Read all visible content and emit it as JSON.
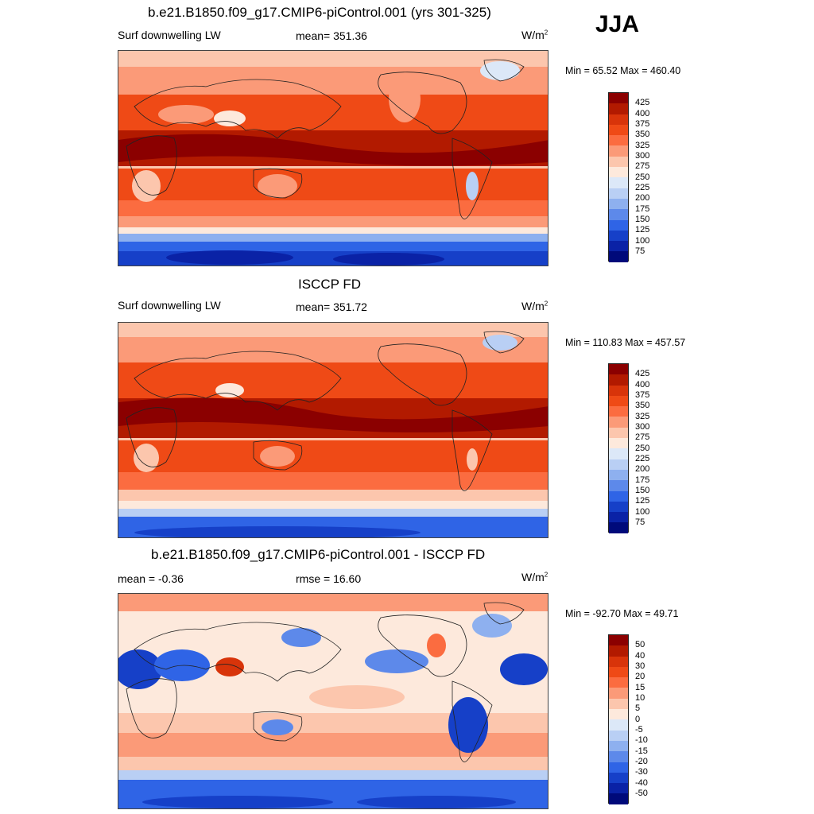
{
  "season": "JJA",
  "panels": [
    {
      "title": "b.e21.B1850.f09_g17.CMIP6-piControl.001 (yrs 301-325)",
      "left_label": "Surf downwelling LW",
      "center_label": "mean= 351.36",
      "units_base": "W/m",
      "units_exp": "2",
      "minmax": "Min =  65.52 Max = 460.40"
    },
    {
      "title": "ISCCP FD",
      "left_label": "Surf downwelling LW",
      "center_label": "mean= 351.72",
      "units_base": "W/m",
      "units_exp": "2",
      "minmax": "Min = 110.83 Max = 457.57"
    },
    {
      "title": "b.e21.B1850.f09_g17.CMIP6-piControl.001 - ISCCP FD",
      "left_label": "mean =  -0.36",
      "center_label": "rmse =  16.60",
      "units_base": "W/m",
      "units_exp": "2",
      "minmax": "Min = -92.70 Max =  49.71"
    }
  ],
  "colorbar_abs": {
    "labels": [
      "425",
      "400",
      "375",
      "350",
      "325",
      "300",
      "275",
      "250",
      "225",
      "200",
      "175",
      "150",
      "125",
      "100",
      "75"
    ],
    "colors": [
      "#8b0000",
      "#b21a00",
      "#d8340a",
      "#ef4a16",
      "#fb6c40",
      "#fb9a78",
      "#fcc6ad",
      "#fde9dc",
      "#dce8f8",
      "#b9cff4",
      "#8eb0ef",
      "#5d89ea",
      "#2f64e6",
      "#1640c8",
      "#0a22a6",
      "#000a7a"
    ]
  },
  "colorbar_diff": {
    "labels": [
      "50",
      "40",
      "30",
      "20",
      "15",
      "10",
      "5",
      "0",
      "-5",
      "-10",
      "-15",
      "-20",
      "-30",
      "-40",
      "-50"
    ],
    "colors": [
      "#8b0000",
      "#b21a00",
      "#d8340a",
      "#ef4a16",
      "#fb6c40",
      "#fb9a78",
      "#fcc6ad",
      "#fde9dc",
      "#dce8f8",
      "#b9cff4",
      "#8eb0ef",
      "#5d89ea",
      "#2f64e6",
      "#1640c8",
      "#0a22a6",
      "#000a7a"
    ]
  }
}
